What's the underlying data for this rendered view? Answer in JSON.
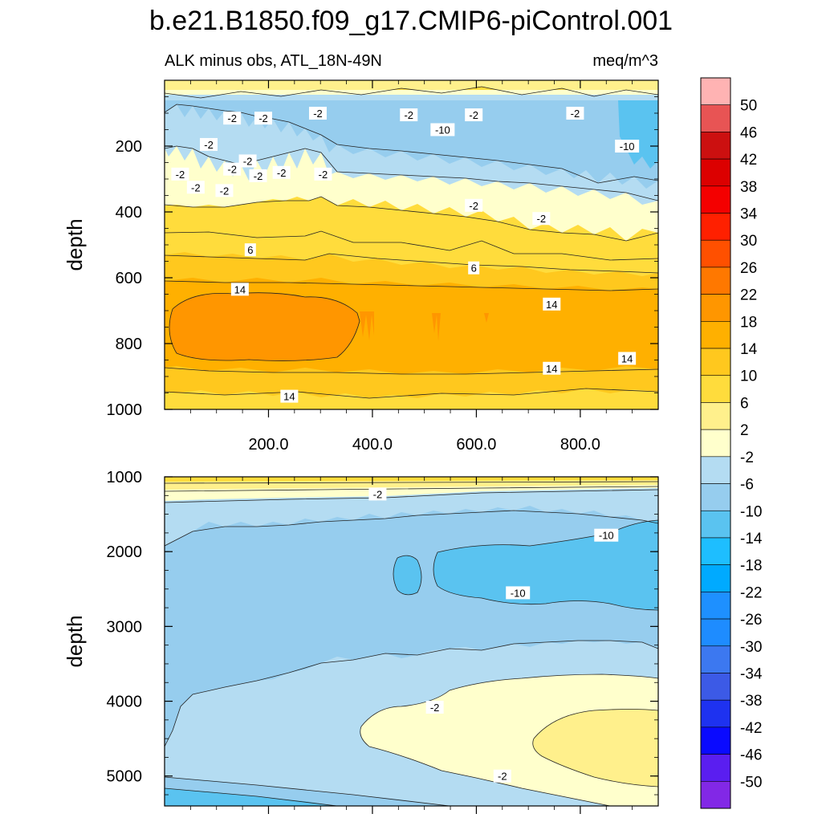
{
  "chart_data": {
    "type": "heatmap",
    "title": "b.e21.B1850.f09_g17.CMIP6-piControl.001",
    "subtitle_left": "ALK minus obs, ATL_18N-49N",
    "subtitle_right": "meq/m^3",
    "panels": [
      {
        "name": "upper",
        "ylabel": "depth",
        "xlabel": "",
        "xlim": [
          0,
          950
        ],
        "ylim": [
          0,
          1000
        ],
        "y_inverted": true,
        "xticks": [
          200,
          400,
          600,
          800
        ],
        "xtick_labels": [
          "200.0",
          "400.0",
          "600.0",
          "800.0"
        ],
        "yticks": [
          200,
          400,
          600,
          800,
          1000
        ],
        "ytick_labels": [
          "200",
          "400",
          "600",
          "800",
          "1000"
        ],
        "contour_labels": [
          {
            "text": "-2",
            "x": 130,
            "y": 115
          },
          {
            "text": "-2",
            "x": 190,
            "y": 115
          },
          {
            "text": "-2",
            "x": 295,
            "y": 100
          },
          {
            "text": "-2",
            "x": 470,
            "y": 105
          },
          {
            "text": "-10",
            "x": 535,
            "y": 150
          },
          {
            "text": "-2",
            "x": 595,
            "y": 105
          },
          {
            "text": "-2",
            "x": 790,
            "y": 100
          },
          {
            "text": "-2",
            "x": 85,
            "y": 195
          },
          {
            "text": "-2",
            "x": 160,
            "y": 245
          },
          {
            "text": "-2",
            "x": 130,
            "y": 270
          },
          {
            "text": "-2",
            "x": 180,
            "y": 290
          },
          {
            "text": "-2",
            "x": 225,
            "y": 280
          },
          {
            "text": "-2",
            "x": 305,
            "y": 285
          },
          {
            "text": "-2",
            "x": 30,
            "y": 285
          },
          {
            "text": "-2",
            "x": 60,
            "y": 325
          },
          {
            "text": "-2",
            "x": 115,
            "y": 335
          },
          {
            "text": "-10",
            "x": 890,
            "y": 200
          },
          {
            "text": "-2",
            "x": 595,
            "y": 380
          },
          {
            "text": "-2",
            "x": 725,
            "y": 420
          },
          {
            "text": "6",
            "x": 165,
            "y": 515
          },
          {
            "text": "6",
            "x": 595,
            "y": 570
          },
          {
            "text": "14",
            "x": 145,
            "y": 635
          },
          {
            "text": "14",
            "x": 745,
            "y": 680
          },
          {
            "text": "14",
            "x": 745,
            "y": 875
          },
          {
            "text": "14",
            "x": 890,
            "y": 845
          },
          {
            "text": "14",
            "x": 240,
            "y": 960
          }
        ]
      },
      {
        "name": "lower",
        "ylabel": "depth",
        "xlabel": "",
        "xlim": [
          0,
          950
        ],
        "ylim": [
          1000,
          5400
        ],
        "y_inverted": true,
        "yticks": [
          1000,
          2000,
          3000,
          4000,
          5000
        ],
        "ytick_labels": [
          "1000",
          "2000",
          "3000",
          "4000",
          "5000"
        ],
        "contour_labels": [
          {
            "text": "-2",
            "x": 410,
            "y": 1230
          },
          {
            "text": "-10",
            "x": 850,
            "y": 1780
          },
          {
            "text": "-10",
            "x": 680,
            "y": 2550
          },
          {
            "text": "-2",
            "x": 520,
            "y": 4080
          },
          {
            "text": "-2",
            "x": 650,
            "y": 5000
          }
        ]
      }
    ],
    "colorbar": {
      "levels": [
        "50",
        "46",
        "42",
        "38",
        "34",
        "30",
        "26",
        "22",
        "18",
        "14",
        "10",
        "6",
        "2",
        "-2",
        "-6",
        "-10",
        "-14",
        "-18",
        "-22",
        "-26",
        "-30",
        "-34",
        "-38",
        "-42",
        "-46",
        "-50"
      ],
      "colors": [
        "#ffb3b3",
        "#e85454",
        "#cc1010",
        "#dc0000",
        "#f40000",
        "#ff2000",
        "#ff5000",
        "#ff7800",
        "#ff9600",
        "#ffb000",
        "#ffc81e",
        "#ffdc3c",
        "#fff08c",
        "#ffffcc",
        "#b4dcf2",
        "#96cdee",
        "#5ac3f0",
        "#1ebeff",
        "#00aaff",
        "#1e90ff",
        "#1e8cff",
        "#3c78f0",
        "#3c5ae6",
        "#1e32f0",
        "#0a0aff",
        "#5a1ef0",
        "#8228e6"
      ]
    }
  }
}
